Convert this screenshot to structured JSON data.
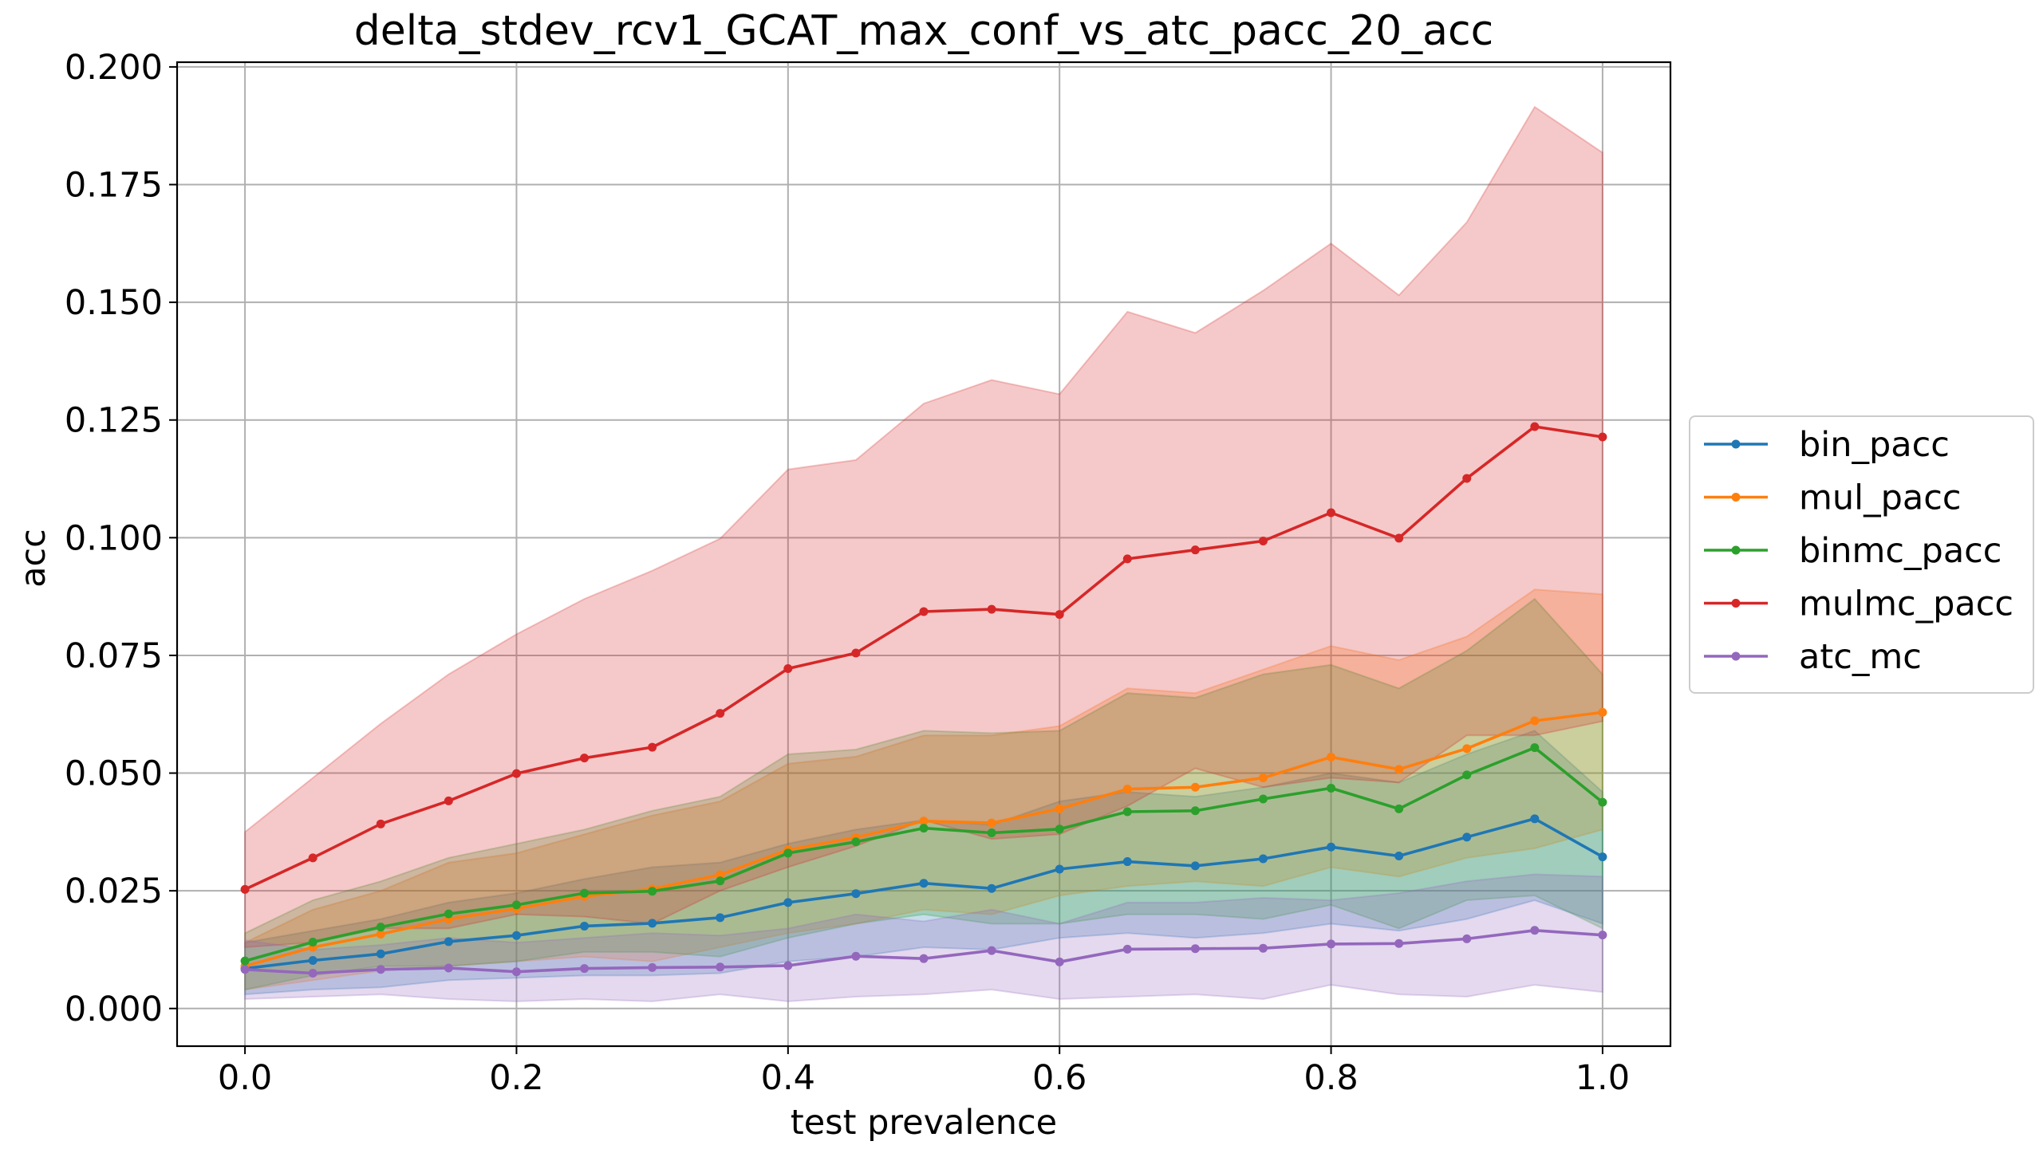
{
  "chart_data": {
    "type": "line",
    "title": "delta_stdev_rcv1_GCAT_max_conf_vs_atc_pacc_20_acc",
    "xlabel": "test prevalence",
    "ylabel": "acc",
    "xlim": [
      -0.05,
      1.05
    ],
    "ylim": [
      -0.008,
      0.201
    ],
    "xticks": [
      0.0,
      0.2,
      0.4,
      0.6,
      0.8,
      1.0
    ],
    "xtick_labels": [
      "0.0",
      "0.2",
      "0.4",
      "0.6",
      "0.8",
      "1.0"
    ],
    "yticks": [
      0.0,
      0.025,
      0.05,
      0.075,
      0.1,
      0.125,
      0.15,
      0.175,
      0.2
    ],
    "ytick_labels": [
      "0.000",
      "0.025",
      "0.050",
      "0.075",
      "0.100",
      "0.125",
      "0.150",
      "0.175",
      "0.200"
    ],
    "grid": true,
    "legend_position": "outside-right",
    "x": [
      0.0,
      0.05,
      0.1,
      0.15,
      0.2,
      0.25,
      0.3,
      0.35,
      0.4,
      0.45,
      0.5,
      0.55,
      0.6,
      0.65,
      0.7,
      0.75,
      0.8,
      0.85,
      0.9,
      0.95,
      1.0
    ],
    "series": [
      {
        "name": "bin_pacc",
        "color": "#1f77b4",
        "values": [
          0.0085,
          0.0102,
          0.0116,
          0.0142,
          0.0155,
          0.0175,
          0.0181,
          0.0193,
          0.0225,
          0.0244,
          0.0266,
          0.0255,
          0.0296,
          0.0312,
          0.0303,
          0.0318,
          0.0343,
          0.0324,
          0.0364,
          0.0403,
          0.0322
        ],
        "lower": [
          0.003,
          0.004,
          0.0045,
          0.006,
          0.0065,
          0.007,
          0.007,
          0.0075,
          0.01,
          0.011,
          0.013,
          0.0125,
          0.015,
          0.016,
          0.015,
          0.016,
          0.018,
          0.0165,
          0.019,
          0.023,
          0.018
        ],
        "upper": [
          0.014,
          0.0165,
          0.019,
          0.0225,
          0.0245,
          0.0275,
          0.03,
          0.031,
          0.035,
          0.038,
          0.04,
          0.039,
          0.044,
          0.046,
          0.045,
          0.047,
          0.05,
          0.048,
          0.054,
          0.059,
          0.046
        ]
      },
      {
        "name": "mul_pacc",
        "color": "#ff7f0e",
        "values": [
          0.009,
          0.013,
          0.0158,
          0.019,
          0.0212,
          0.0238,
          0.0254,
          0.0284,
          0.0337,
          0.0363,
          0.0398,
          0.0394,
          0.0424,
          0.0466,
          0.047,
          0.049,
          0.0534,
          0.0508,
          0.0552,
          0.0611,
          0.0629
        ],
        "lower": [
          0.004,
          0.006,
          0.008,
          0.009,
          0.01,
          0.011,
          0.01,
          0.013,
          0.016,
          0.018,
          0.021,
          0.02,
          0.024,
          0.026,
          0.027,
          0.026,
          0.03,
          0.028,
          0.032,
          0.034,
          0.038
        ],
        "upper": [
          0.014,
          0.021,
          0.025,
          0.031,
          0.033,
          0.037,
          0.041,
          0.044,
          0.052,
          0.0535,
          0.058,
          0.058,
          0.06,
          0.068,
          0.067,
          0.072,
          0.077,
          0.074,
          0.079,
          0.089,
          0.088
        ]
      },
      {
        "name": "binmc_pacc",
        "color": "#2ca02c",
        "values": [
          0.0101,
          0.0141,
          0.0173,
          0.0201,
          0.022,
          0.0245,
          0.0249,
          0.0271,
          0.033,
          0.0354,
          0.0383,
          0.0373,
          0.0381,
          0.0418,
          0.042,
          0.0445,
          0.0468,
          0.0424,
          0.0496,
          0.0554,
          0.0438
        ],
        "lower": [
          0.004,
          0.007,
          0.009,
          0.009,
          0.01,
          0.012,
          0.012,
          0.011,
          0.015,
          0.018,
          0.02,
          0.018,
          0.018,
          0.02,
          0.02,
          0.019,
          0.022,
          0.017,
          0.023,
          0.024,
          0.017
        ],
        "upper": [
          0.016,
          0.023,
          0.027,
          0.032,
          0.035,
          0.038,
          0.042,
          0.045,
          0.054,
          0.055,
          0.059,
          0.0585,
          0.059,
          0.067,
          0.066,
          0.071,
          0.073,
          0.068,
          0.076,
          0.087,
          0.071
        ]
      },
      {
        "name": "mulmc_pacc",
        "color": "#d62728",
        "values": [
          0.0253,
          0.032,
          0.0392,
          0.0441,
          0.0499,
          0.0532,
          0.0555,
          0.0627,
          0.0722,
          0.0755,
          0.0843,
          0.0848,
          0.0837,
          0.0955,
          0.0974,
          0.0993,
          0.1053,
          0.0999,
          0.1126,
          0.1236,
          0.1214
        ],
        "lower": [
          0.013,
          0.014,
          0.017,
          0.017,
          0.02,
          0.0195,
          0.018,
          0.025,
          0.03,
          0.0345,
          0.04,
          0.036,
          0.037,
          0.043,
          0.051,
          0.047,
          0.049,
          0.048,
          0.058,
          0.058,
          0.061
        ],
        "upper": [
          0.0375,
          0.049,
          0.0605,
          0.071,
          0.0795,
          0.087,
          0.093,
          0.0998,
          0.1145,
          0.1165,
          0.1285,
          0.1335,
          0.1305,
          0.148,
          0.1435,
          0.1525,
          0.1625,
          0.1515,
          0.167,
          0.1915,
          0.1818
        ]
      },
      {
        "name": "atc_mc",
        "color": "#9467bd",
        "values": [
          0.0083,
          0.0075,
          0.0083,
          0.0086,
          0.0078,
          0.0085,
          0.0087,
          0.0088,
          0.0091,
          0.0111,
          0.0106,
          0.0123,
          0.0099,
          0.0126,
          0.0127,
          0.0128,
          0.0137,
          0.0138,
          0.0148,
          0.0166,
          0.0156
        ],
        "lower": [
          0.002,
          0.0025,
          0.003,
          0.002,
          0.0015,
          0.002,
          0.0015,
          0.003,
          0.0015,
          0.0025,
          0.003,
          0.004,
          0.002,
          0.0025,
          0.003,
          0.002,
          0.005,
          0.003,
          0.0025,
          0.005,
          0.0035
        ],
        "upper": [
          0.0145,
          0.0125,
          0.0135,
          0.015,
          0.014,
          0.015,
          0.016,
          0.0155,
          0.017,
          0.02,
          0.0185,
          0.021,
          0.018,
          0.0225,
          0.0225,
          0.0235,
          0.023,
          0.0245,
          0.027,
          0.0285,
          0.028
        ]
      }
    ]
  }
}
